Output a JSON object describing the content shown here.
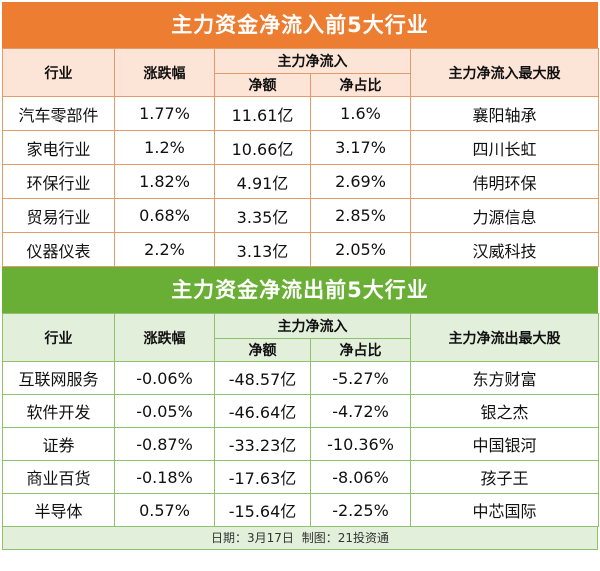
{
  "inflow": {
    "title": "主力资金净流入前5大行业",
    "headers": {
      "industry": "行业",
      "change": "涨跌幅",
      "group": "主力净流入",
      "net": "净额",
      "ratio": "净占比",
      "top_stock": "主力净流入最大股"
    },
    "rows": [
      {
        "industry": "汽车零部件",
        "change": "1.77%",
        "net": "11.61亿",
        "ratio": "1.6%",
        "stock": "襄阳轴承"
      },
      {
        "industry": "家电行业",
        "change": "1.2%",
        "net": "10.66亿",
        "ratio": "3.17%",
        "stock": "四川长虹"
      },
      {
        "industry": "环保行业",
        "change": "1.82%",
        "net": "4.91亿",
        "ratio": "2.69%",
        "stock": "伟明环保"
      },
      {
        "industry": "贸易行业",
        "change": "0.68%",
        "net": "3.35亿",
        "ratio": "2.85%",
        "stock": "力源信息"
      },
      {
        "industry": "仪器仪表",
        "change": "2.2%",
        "net": "3.13亿",
        "ratio": "2.05%",
        "stock": "汉威科技"
      }
    ]
  },
  "outflow": {
    "title": "主力资金净流出前5大行业",
    "headers": {
      "industry": "行业",
      "change": "涨跌幅",
      "group": "主力净流入",
      "net": "净额",
      "ratio": "净占比",
      "top_stock": "主力净流出最大股"
    },
    "rows": [
      {
        "industry": "互联网服务",
        "change": "-0.06%",
        "net": "-48.57亿",
        "ratio": "-5.27%",
        "stock": "东方财富"
      },
      {
        "industry": "软件开发",
        "change": "-0.05%",
        "net": "-46.64亿",
        "ratio": "-4.72%",
        "stock": "银之杰"
      },
      {
        "industry": "证券",
        "change": "-0.87%",
        "net": "-33.23亿",
        "ratio": "-10.36%",
        "stock": "中国银河"
      },
      {
        "industry": "商业百货",
        "change": "-0.18%",
        "net": "-17.63亿",
        "ratio": "-8.06%",
        "stock": "孩子王"
      },
      {
        "industry": "半导体",
        "change": "0.57%",
        "net": "-15.64亿",
        "ratio": "-2.25%",
        "stock": "中芯国际"
      }
    ]
  },
  "footer": {
    "date": "日期：3月17日",
    "maker": "制图：21投资通"
  },
  "colors": {
    "inflow_banner": "#ed7d31",
    "inflow_header_bg": "#fce4d6",
    "outflow_banner": "#6aaf35",
    "outflow_header_bg": "#e2efda"
  }
}
